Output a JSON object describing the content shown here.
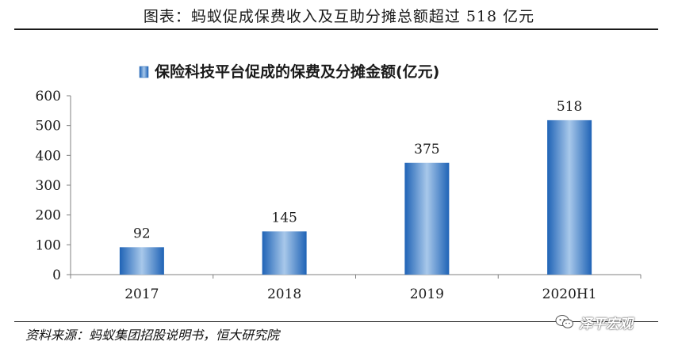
{
  "figure": {
    "title": "图表：蚂蚁促成保费收入及互助分摊总额超过 518 亿元",
    "source": "资料来源：蚂蚁集团招股说明书，恒大研究院",
    "watermark": "泽平宏观",
    "watermark_icon": "wechat-icon"
  },
  "chart_data": {
    "type": "bar",
    "title": "",
    "legend": {
      "placement": "top-center",
      "entries": [
        "保险科技平台促成的保费及分摊金额(亿元)"
      ]
    },
    "categories": [
      "2017",
      "2018",
      "2019",
      "2020H1"
    ],
    "series": [
      {
        "name": "保险科技平台促成的保费及分摊金额(亿元)",
        "values": [
          92,
          145,
          375,
          518
        ]
      }
    ],
    "data_labels": [
      "92",
      "145",
      "375",
      "518"
    ],
    "yticks": [
      0,
      100,
      200,
      300,
      400,
      500,
      600
    ],
    "ytick_labels": [
      "0",
      "100",
      "200",
      "300",
      "400",
      "500",
      "600"
    ],
    "ylim": [
      0,
      600
    ],
    "xlabel": "",
    "ylabel": "",
    "grid": false,
    "colors": {
      "bar_center": "#9fc1e6",
      "bar_edge": "#1f63b6",
      "axis": "#808080",
      "text": "#1a1a1a"
    }
  }
}
